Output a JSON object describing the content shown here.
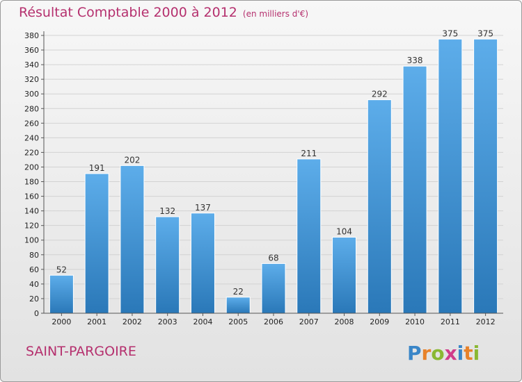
{
  "header": {
    "title": "Résultat Comptable 2000 à 2012",
    "subtitle": "(en milliers d'€)"
  },
  "footer": {
    "commune": "SAINT-PARGOIRE",
    "logo_text": "Proxiti"
  },
  "colors": {
    "title": "#b5306e",
    "bar_top": "#5dadea",
    "bar_bottom": "#2a78b8"
  },
  "chart_data": {
    "type": "bar",
    "categories": [
      "2000",
      "2001",
      "2002",
      "2003",
      "2004",
      "2005",
      "2006",
      "2007",
      "2008",
      "2009",
      "2010",
      "2011",
      "2012"
    ],
    "values": [
      52,
      191,
      202,
      132,
      137,
      22,
      68,
      211,
      104,
      292,
      338,
      375,
      375
    ],
    "ylim": [
      0,
      380
    ],
    "yticks": [
      0,
      20,
      40,
      60,
      80,
      100,
      120,
      140,
      160,
      180,
      200,
      220,
      240,
      260,
      280,
      300,
      320,
      340,
      360,
      380
    ],
    "grid": true,
    "legend": "none"
  }
}
